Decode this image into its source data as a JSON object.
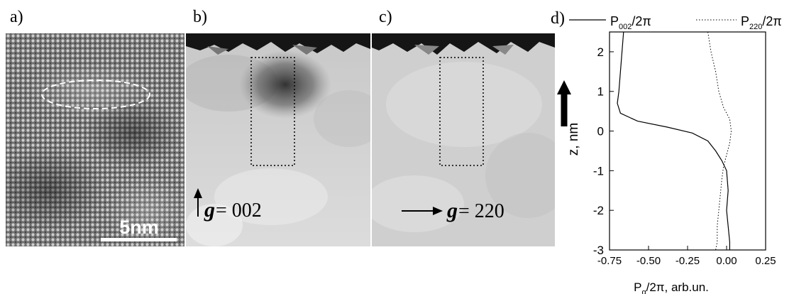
{
  "panels": {
    "a": {
      "label": "a)",
      "scale_bar": "5nm"
    },
    "b": {
      "label": "b)",
      "g_symbol": "g",
      "g_value": "= 002"
    },
    "c": {
      "label": "c)",
      "g_symbol": "g",
      "g_value": "= 220"
    },
    "d": {
      "label": "d)",
      "legend": [
        {
          "style": "solid",
          "name_main": "P",
          "name_sub": "002",
          "name_tail": "/2π"
        },
        {
          "style": "dotted",
          "name_main": "P",
          "name_sub": "220",
          "name_tail": "/2π"
        }
      ]
    }
  },
  "chart_data": {
    "type": "line",
    "orientation": "vertical-profile",
    "xlabel_main": "P",
    "xlabel_sub": "g",
    "xlabel_tail": "/2π, arb.un.",
    "ylabel": "z, nm",
    "xlim": [
      -0.75,
      0.25
    ],
    "ylim": [
      -3,
      2.5
    ],
    "x_ticks": [
      "-0.75",
      "-0.50",
      "-0.25",
      "0.00",
      "0.25"
    ],
    "x_tick_values": [
      -0.75,
      -0.5,
      -0.25,
      0.0,
      0.25
    ],
    "y_ticks": [
      "2",
      "1",
      "0",
      "-1",
      "-2",
      "-3"
    ],
    "y_tick_values": [
      2,
      1,
      0,
      -1,
      -2,
      -3
    ],
    "series": [
      {
        "name": "P002/2π",
        "style": "solid",
        "points": [
          [
            -0.66,
            2.5
          ],
          [
            -0.67,
            2.0
          ],
          [
            -0.68,
            1.5
          ],
          [
            -0.69,
            1.0
          ],
          [
            -0.7,
            0.7
          ],
          [
            -0.68,
            0.45
          ],
          [
            -0.57,
            0.25
          ],
          [
            -0.38,
            0.1
          ],
          [
            -0.22,
            -0.05
          ],
          [
            -0.12,
            -0.25
          ],
          [
            -0.07,
            -0.5
          ],
          [
            -0.03,
            -0.75
          ],
          [
            0.0,
            -1.0
          ],
          [
            0.01,
            -1.5
          ],
          [
            0.0,
            -2.0
          ],
          [
            0.01,
            -2.4
          ],
          [
            0.02,
            -2.8
          ],
          [
            0.02,
            -3.0
          ]
        ]
      },
      {
        "name": "P220/2π",
        "style": "dotted",
        "points": [
          [
            -0.12,
            2.5
          ],
          [
            -0.1,
            2.0
          ],
          [
            -0.07,
            1.5
          ],
          [
            -0.05,
            1.0
          ],
          [
            -0.02,
            0.6
          ],
          [
            0.02,
            0.3
          ],
          [
            0.03,
            0.0
          ],
          [
            0.02,
            -0.3
          ],
          [
            0.0,
            -0.6
          ],
          [
            -0.02,
            -0.9
          ],
          [
            -0.03,
            -1.2
          ],
          [
            -0.04,
            -1.6
          ],
          [
            -0.05,
            -2.0
          ],
          [
            -0.06,
            -2.4
          ],
          [
            -0.06,
            -2.8
          ],
          [
            -0.07,
            -3.0
          ]
        ]
      }
    ]
  }
}
